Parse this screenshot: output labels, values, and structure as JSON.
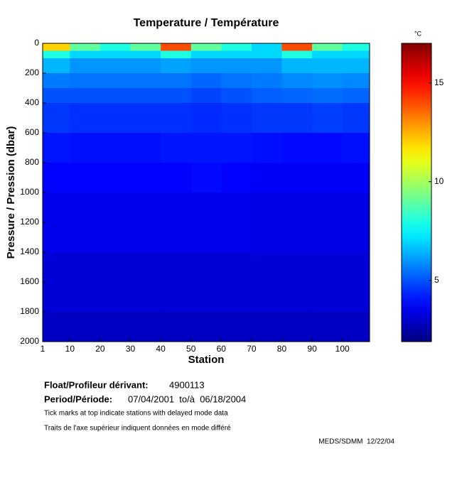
{
  "chart_data": {
    "type": "heatmap",
    "title": "Temperature / Température",
    "x_label": "Station",
    "y_label": "Pressure / Pression (dbar)",
    "colorbar_label": "°C",
    "x_edges": [
      1,
      10,
      20,
      30,
      40,
      50,
      60,
      70,
      80,
      90,
      100,
      109
    ],
    "y_edges": [
      0,
      50,
      100,
      200,
      300,
      400,
      600,
      800,
      1000,
      1400,
      1800,
      2000
    ],
    "values": [
      [
        12,
        9,
        8,
        9,
        14,
        9,
        8,
        7,
        14,
        9,
        8
      ],
      [
        8,
        7,
        7,
        7,
        8,
        7,
        7,
        7,
        8,
        7,
        7
      ],
      [
        6.5,
        6,
        6,
        6,
        6.2,
        6,
        6,
        6,
        6.5,
        6.5,
        6.5
      ],
      [
        5.6,
        5.5,
        5.5,
        5.5,
        5.5,
        5.3,
        5.5,
        5.6,
        5.8,
        5.9,
        5.8
      ],
      [
        5,
        5,
        5,
        5,
        5,
        4.8,
        5,
        5.2,
        5.3,
        5.4,
        5.3
      ],
      [
        4.6,
        4.5,
        4.5,
        4.5,
        4.5,
        4.4,
        4.5,
        4.6,
        4.6,
        4.7,
        4.6
      ],
      [
        4.1,
        4,
        4,
        4,
        4.1,
        4.1,
        4.1,
        4,
        3.9,
        3.9,
        4
      ],
      [
        3.8,
        3.8,
        3.8,
        3.8,
        3.8,
        3.9,
        3.8,
        3.7,
        3.7,
        3.7,
        3.7
      ],
      [
        3.5,
        3.5,
        3.5,
        3.5,
        3.5,
        3.5,
        3.5,
        3.4,
        3.4,
        3.4,
        3.4
      ],
      [
        3.2,
        3.2,
        3.2,
        3.2,
        3.2,
        3.2,
        3.2,
        3.2,
        3.2,
        3.2,
        3.2
      ],
      [
        2.9,
        2.9,
        2.9,
        2.9,
        2.9,
        2.9,
        2.9,
        2.9,
        2.9,
        2.9,
        2.9
      ]
    ],
    "xlim": [
      1,
      109
    ],
    "xticks": [
      1,
      10,
      20,
      30,
      40,
      50,
      60,
      70,
      80,
      90,
      100
    ],
    "ylim": [
      0,
      2000
    ],
    "yticks": [
      0,
      200,
      400,
      600,
      800,
      1000,
      1200,
      1400,
      1600,
      1800,
      2000
    ],
    "y_reversed": true,
    "clim": [
      1.9,
      17
    ],
    "cticks": [
      5,
      10,
      15
    ],
    "colormap": "jet"
  },
  "info": {
    "float_label": "Float/Profileur dérivant:",
    "float_id": "4900113",
    "period_label": "Period/Période:",
    "period": "07/04/2001  to/à  06/18/2004",
    "note_en": "Tick marks at top indicate stations with delayed mode data",
    "note_fr": "Traits de l'axe supérieur indiquent données en mode différé",
    "credit": "MEDS/SDMM  12/22/04"
  }
}
